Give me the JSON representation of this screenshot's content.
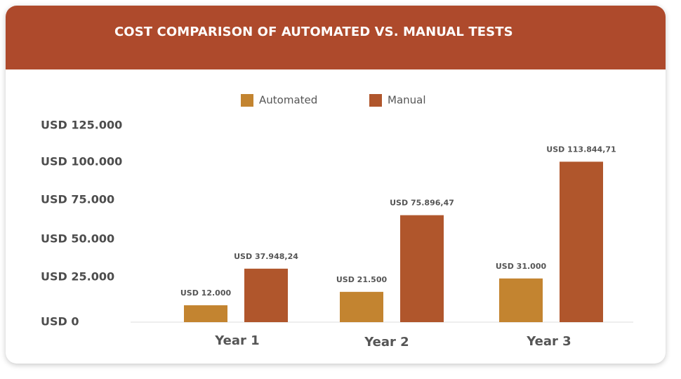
{
  "header": {
    "title": "COST COMPARISON OF AUTOMATED VS. MANUAL TESTS"
  },
  "colors": {
    "header_bg": "#ae4a2c",
    "automated": "#c38430",
    "manual": "#b0562c"
  },
  "chart_data": {
    "type": "bar",
    "title": "COST COMPARISON OF AUTOMATED VS. MANUAL TESTS",
    "categories": [
      "Year 1",
      "Year 2",
      "Year 3"
    ],
    "series": [
      {
        "name": "Automated",
        "values": [
          12000,
          21500,
          31000
        ],
        "labels": [
          "USD 12.000",
          "USD 21.500",
          "USD 31.000"
        ],
        "color": "#c38430"
      },
      {
        "name": "Manual",
        "values": [
          37948.24,
          75896.47,
          113844.71
        ],
        "labels": [
          "USD 37.948,24",
          "USD 75.896,47",
          "USD 113.844,71"
        ],
        "color": "#b0562c"
      }
    ],
    "y_ticks": [
      0,
      25000,
      50000,
      75000,
      100000,
      125000
    ],
    "y_tick_labels": [
      "USD 0",
      "USD 25.000",
      "USD 50.000",
      "USD 75.000",
      "USD 100.000",
      "USD 125.000"
    ],
    "ylim": [
      0,
      125000
    ],
    "xlabel": "",
    "ylabel": "",
    "grid": false,
    "legend": "top-center"
  }
}
